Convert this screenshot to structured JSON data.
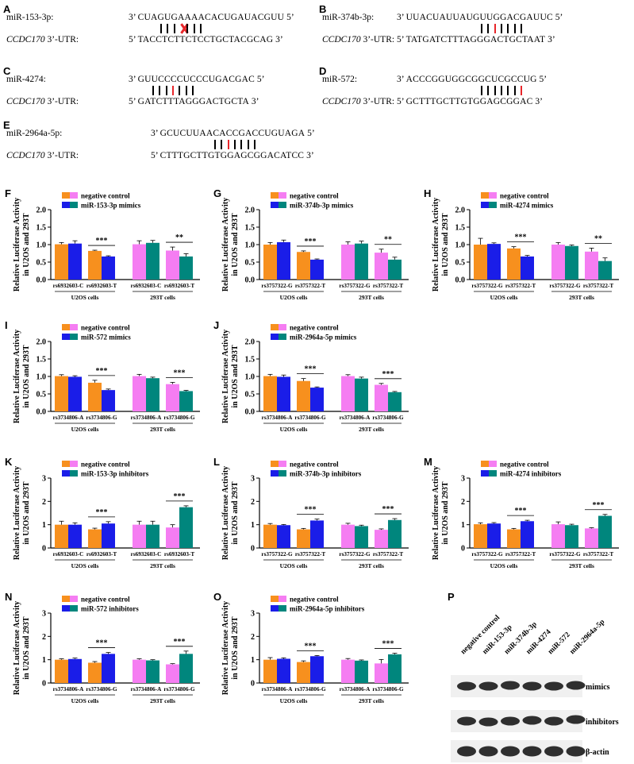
{
  "sequences": [
    {
      "letter": "A",
      "mirna": "miR-153-3p:",
      "mirna_seq": "CUAGUGAAAACACUGAUACGUU",
      "gene": "CCDC170",
      "utr": "3’-UTR:",
      "utr_seq": "TACCTCTTCTCCTGCTACGCAG",
      "mirna_left_end": "3’",
      "mirna_right_end": "5’",
      "utr_left_end": "5’",
      "utr_right_end": "3’",
      "pairs": [
        "b",
        "b",
        "b",
        "x",
        "b",
        "b",
        "b"
      ]
    },
    {
      "letter": "B",
      "mirna": "miR-374b-3p:",
      "mirna_seq": "UUACUAUUAUGUUGGACGAUUC",
      "gene": "CCDC170",
      "utr": "3’-UTR:",
      "utr_seq": "TATGATCTTTAGGGACTGCTAAT",
      "mirna_left_end": "3’",
      "mirna_right_end": "5’",
      "utr_left_end": "5’",
      "utr_right_end": "3’",
      "pairs": [
        "b",
        "b",
        "r",
        "b",
        "b",
        "b",
        "b"
      ]
    },
    {
      "letter": "C",
      "mirna": "miR-4274:",
      "mirna_seq": "GUUCCCCUCCCUGACGAC",
      "gene": "CCDC170",
      "utr": "3’-UTR:",
      "utr_seq": "GATCTTTAGGGACTGCTA",
      "mirna_left_end": "3’",
      "mirna_right_end": "5’",
      "utr_left_end": "5’",
      "utr_right_end": "3’",
      "pairs": [
        "b",
        "b",
        "b",
        "r",
        "b",
        "b",
        "b"
      ]
    },
    {
      "letter": "D",
      "mirna": "miR-572:",
      "mirna_seq": "ACCCGGUGGCGGCUCGCCUG",
      "gene": "CCDC170",
      "utr": "3’-UTR:",
      "utr_seq": "GCTTTGCTTGTGGAGCGGAC",
      "mirna_left_end": "3’",
      "mirna_right_end": "5’",
      "utr_left_end": "5’",
      "utr_right_end": "3’",
      "pairs": [
        "b",
        "b",
        "b",
        "b",
        "b",
        "b",
        "r"
      ]
    },
    {
      "letter": "E",
      "mirna": "miR-2964a-5p:",
      "mirna_seq": "GCUCUUAACACCGACCUGUAGA",
      "gene": "CCDC170",
      "utr": "3’-UTR:",
      "utr_seq": "CTTTGCTTGTGGAGCGGACATCC",
      "mirna_left_end": "3’",
      "mirna_right_end": "5’",
      "utr_left_end": "5’",
      "utr_right_end": "3’",
      "pairs": [
        "b",
        "b",
        "r",
        "b",
        "b",
        "b",
        "b"
      ]
    }
  ],
  "chart_data": [
    {
      "letter": "F",
      "type": "bar",
      "ylabel": "Relative Luciferase Activity in U2OS and 293T",
      "ylim": [
        0,
        2
      ],
      "yticks": [
        "0.0",
        "0.5",
        "1.0",
        "1.5",
        "2.0"
      ],
      "legend": [
        "negative control",
        "miR-153-3p mimics"
      ],
      "categories": [
        "rs6932603-C",
        "rs6932603-T",
        "rs6932603-C",
        "rs6932603-T"
      ],
      "groups": [
        "U2OS cells",
        "293T cells"
      ],
      "series": [
        {
          "name": "negative control",
          "values": [
            1.01,
            0.82,
            1.01,
            0.83
          ],
          "errors": [
            0.05,
            0.02,
            0.1,
            0.1
          ]
        },
        {
          "name": "miR-153-3p mimics",
          "values": [
            1.03,
            0.66,
            1.05,
            0.66
          ],
          "errors": [
            0.08,
            0.02,
            0.07,
            0.08
          ]
        }
      ],
      "sig": [
        "***",
        "**"
      ]
    },
    {
      "letter": "G",
      "type": "bar",
      "ylabel": "Relative Luciferase Activity in U2OS and 293T",
      "ylim": [
        0,
        2
      ],
      "yticks": [
        "0.0",
        "0.5",
        "1.0",
        "1.5",
        "2.0"
      ],
      "legend": [
        "negative control",
        "miR-374b-3p mimics"
      ],
      "categories": [
        "rs3757322-G",
        "rs3757322-T",
        "rs3757322-G",
        "rs3757322-T"
      ],
      "groups": [
        "U2OS cells",
        "293T cells"
      ],
      "series": [
        {
          "name": "negative control",
          "values": [
            1.0,
            0.79,
            1.0,
            0.77
          ],
          "errors": [
            0.06,
            0.03,
            0.08,
            0.1
          ]
        },
        {
          "name": "miR-374b-3p mimics",
          "values": [
            1.07,
            0.57,
            1.03,
            0.57
          ],
          "errors": [
            0.06,
            0.02,
            0.07,
            0.07
          ]
        }
      ],
      "sig": [
        "***",
        "**"
      ]
    },
    {
      "letter": "H",
      "type": "bar",
      "ylabel": "Relative Luciferase Activity in U2OS and 293T",
      "ylim": [
        0,
        2
      ],
      "yticks": [
        "0.0",
        "0.5",
        "1.0",
        "1.5",
        "2.0"
      ],
      "legend": [
        "negative control",
        "miR-4274 mimics"
      ],
      "categories": [
        "rs3757322-G",
        "rs3757322-T",
        "rs3757322-G",
        "rs3757322-T"
      ],
      "groups": [
        "U2OS cells",
        "293T cells"
      ],
      "series": [
        {
          "name": "negative control",
          "values": [
            1.0,
            0.89,
            1.0,
            0.8
          ],
          "errors": [
            0.18,
            0.05,
            0.06,
            0.1
          ]
        },
        {
          "name": "miR-4274 mimics",
          "values": [
            1.02,
            0.66,
            0.96,
            0.53
          ],
          "errors": [
            0.03,
            0.03,
            0.03,
            0.09
          ]
        }
      ],
      "sig": [
        "***",
        "**"
      ]
    },
    {
      "letter": "I",
      "type": "bar",
      "ylabel": "Relative Luciferase Activity in U2OS and 293T",
      "ylim": [
        0,
        2
      ],
      "yticks": [
        "0.0",
        "0.5",
        "1.0",
        "1.5",
        "2.0"
      ],
      "legend": [
        "negative control",
        "miR-572 mimics"
      ],
      "categories": [
        "rs3734806-A",
        "rs3734806-G",
        "rs3734806-A",
        "rs3734806-G"
      ],
      "groups": [
        "U2OS cells",
        "293T cells"
      ],
      "series": [
        {
          "name": "negative control",
          "values": [
            1.01,
            0.82,
            1.01,
            0.78
          ],
          "errors": [
            0.04,
            0.07,
            0.05,
            0.05
          ]
        },
        {
          "name": "miR-572 mimics",
          "values": [
            0.99,
            0.61,
            0.95,
            0.58
          ],
          "errors": [
            0.03,
            0.03,
            0.03,
            0.02
          ]
        }
      ],
      "sig": [
        "***",
        "***"
      ]
    },
    {
      "letter": "J",
      "type": "bar",
      "ylabel": "Relative Luciferase Activity in U2OS and 293T",
      "ylim": [
        0,
        2
      ],
      "yticks": [
        "0.0",
        "0.5",
        "1.0",
        "1.5",
        "2.0"
      ],
      "legend": [
        "negative control",
        "miR-2964a-5p mimics"
      ],
      "categories": [
        "rs3734806-A",
        "rs3734806-G",
        "rs3734806-A",
        "rs3734806-G"
      ],
      "groups": [
        "U2OS cells",
        "293T cells"
      ],
      "series": [
        {
          "name": "negative control",
          "values": [
            1.01,
            0.87,
            1.01,
            0.76
          ],
          "errors": [
            0.05,
            0.07,
            0.04,
            0.04
          ]
        },
        {
          "name": "miR-2964a-5p mimics",
          "values": [
            0.99,
            0.68,
            0.94,
            0.55
          ],
          "errors": [
            0.05,
            0.02,
            0.04,
            0.02
          ]
        }
      ],
      "sig": [
        "***",
        "***"
      ]
    },
    {
      "letter": "K",
      "type": "bar",
      "ylabel": "Relative Luciferase Activity in U2OS and 293T",
      "ylim": [
        0,
        3
      ],
      "yticks": [
        "0",
        "1",
        "2",
        "3"
      ],
      "legend": [
        "negative control",
        "miR-153-3p inhibitors"
      ],
      "categories": [
        "rs6932603-C",
        "rs6932603-T",
        "rs6932603-C",
        "rs6932603-T"
      ],
      "groups": [
        "U2OS cells",
        "293T cells"
      ],
      "series": [
        {
          "name": "negative control",
          "values": [
            1.0,
            0.8,
            1.0,
            0.88
          ],
          "errors": [
            0.15,
            0.05,
            0.15,
            0.12
          ]
        },
        {
          "name": "miR-153-3p inhibitors",
          "values": [
            1.0,
            1.05,
            1.0,
            1.75
          ],
          "errors": [
            0.08,
            0.08,
            0.15,
            0.06
          ]
        }
      ],
      "sig": [
        "***",
        "***"
      ]
    },
    {
      "letter": "L",
      "type": "bar",
      "ylabel": "Relative Luciferase Activity in U2OS and 293T",
      "ylim": [
        0,
        3
      ],
      "yticks": [
        "0",
        "1",
        "2",
        "3"
      ],
      "legend": [
        "negative control",
        "miR-374b-3p inhibitors"
      ],
      "categories": [
        "rs3757322-G",
        "rs3757322-T",
        "rs3757322-G",
        "rs3757322-T"
      ],
      "groups": [
        "U2OS cells",
        "293T cells"
      ],
      "series": [
        {
          "name": "negative control",
          "values": [
            1.0,
            0.8,
            1.0,
            0.78
          ],
          "errors": [
            0.05,
            0.04,
            0.06,
            0.04
          ]
        },
        {
          "name": "miR-374b-3p inhibitors",
          "values": [
            0.98,
            1.18,
            0.94,
            1.2
          ],
          "errors": [
            0.03,
            0.06,
            0.04,
            0.06
          ]
        }
      ],
      "sig": [
        "***",
        "***"
      ]
    },
    {
      "letter": "M",
      "type": "bar",
      "ylabel": "Relative Luciferase Activity in U2OS and 293T",
      "ylim": [
        0,
        3
      ],
      "yticks": [
        "0",
        "1",
        "2",
        "3"
      ],
      "legend": [
        "negative control",
        "miR-4274 inhibitors"
      ],
      "categories": [
        "rs3757322-G",
        "rs3757322-T",
        "rs3757322-G",
        "rs3757322-T"
      ],
      "groups": [
        "U2OS cells",
        "293T cells"
      ],
      "series": [
        {
          "name": "negative control",
          "values": [
            1.02,
            0.8,
            1.02,
            0.84
          ],
          "errors": [
            0.06,
            0.04,
            0.1,
            0.03
          ]
        },
        {
          "name": "miR-4274 inhibitors",
          "values": [
            1.05,
            1.15,
            0.98,
            1.38
          ],
          "errors": [
            0.04,
            0.04,
            0.04,
            0.06
          ]
        }
      ],
      "sig": [
        "***",
        "***"
      ]
    },
    {
      "letter": "N",
      "type": "bar",
      "ylabel": "Relative Luciferase Activity in U2OS and 293T",
      "ylim": [
        0,
        3
      ],
      "yticks": [
        "0",
        "1",
        "2",
        "3"
      ],
      "legend": [
        "negative control",
        "miR-572 inhibitors"
      ],
      "categories": [
        "rs3734806-A",
        "rs3734806-G",
        "rs3734806-A",
        "rs3734806-G"
      ],
      "groups": [
        "U2OS cells",
        "293T cells"
      ],
      "series": [
        {
          "name": "negative control",
          "values": [
            1.0,
            0.87,
            1.0,
            0.8
          ],
          "errors": [
            0.04,
            0.05,
            0.04,
            0.03
          ]
        },
        {
          "name": "miR-572 inhibitors",
          "values": [
            1.03,
            1.25,
            0.97,
            1.25
          ],
          "errors": [
            0.04,
            0.06,
            0.03,
            0.12
          ]
        }
      ],
      "sig": [
        "***",
        "***"
      ]
    },
    {
      "letter": "O",
      "type": "bar",
      "ylabel": "Relative Luciferase Activity in U2OS and 293T",
      "ylim": [
        0,
        3
      ],
      "yticks": [
        "0",
        "1",
        "2",
        "3"
      ],
      "legend": [
        "negative control",
        "miR-2964a-5p inhibitors"
      ],
      "categories": [
        "rs3734806-A",
        "rs3734806-G",
        "rs3734806-A",
        "rs3734806-G"
      ],
      "groups": [
        "U2OS cells",
        "293T cells"
      ],
      "series": [
        {
          "name": "negative control",
          "values": [
            1.0,
            0.9,
            1.0,
            0.84
          ],
          "errors": [
            0.09,
            0.05,
            0.05,
            0.17
          ]
        },
        {
          "name": "miR-2964a-5p inhibitors",
          "values": [
            1.04,
            1.15,
            0.96,
            1.23
          ],
          "errors": [
            0.04,
            0.03,
            0.03,
            0.05
          ]
        }
      ],
      "sig": [
        "***",
        "***"
      ]
    }
  ],
  "colors": {
    "u2os_nc": "#f7901e",
    "u2os_trt": "#1a1de8",
    "t293_nc": "#f57df2",
    "t293_trt": "#00867d",
    "sig_red": "#e8262a"
  },
  "blot": {
    "letter": "P",
    "lanes": [
      "negative control",
      "miR-153-3p",
      "miR-374b-3p",
      "miR-4274",
      "miR-572",
      "miR-2964a-5p"
    ],
    "rows": [
      "mimics",
      "inhibitors",
      "β-actin"
    ]
  }
}
